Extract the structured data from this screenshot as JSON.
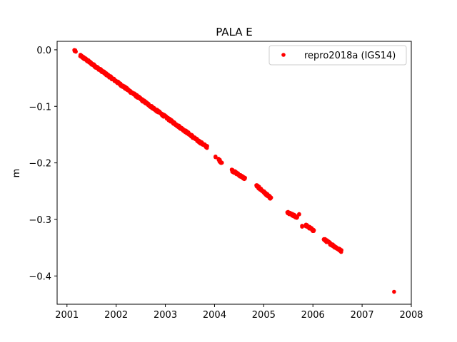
{
  "chart_data": {
    "type": "scatter",
    "title": "PALA E",
    "xlabel": "",
    "ylabel": "m",
    "xlim": [
      2000.8,
      2008.0
    ],
    "ylim": [
      -0.45,
      0.015
    ],
    "x_ticks": [
      2001,
      2002,
      2003,
      2004,
      2005,
      2006,
      2007,
      2008
    ],
    "x_tick_labels": [
      "2001",
      "2002",
      "2003",
      "2004",
      "2005",
      "2006",
      "2007",
      "2008"
    ],
    "y_ticks": [
      0.0,
      -0.1,
      -0.2,
      -0.3,
      -0.4
    ],
    "y_tick_labels": [
      "0.0",
      "−0.1",
      "−0.2",
      "−0.3",
      "−0.4"
    ],
    "legend": {
      "position": "top-right",
      "entries": [
        "repro2018a (IGS14)"
      ]
    },
    "grid": false,
    "colors": {
      "series": "#ff0000",
      "axes": "#000000"
    },
    "series": [
      {
        "name": "repro2018a (IGS14)",
        "marker": "dot",
        "segments": [
          {
            "x_start": 2001.15,
            "y_start": -0.001,
            "x_end": 2001.18,
            "y_end": -0.004
          },
          {
            "x_start": 2001.27,
            "y_start": -0.01,
            "x_end": 2003.55,
            "y_end": -0.153
          },
          {
            "x_start": 2003.55,
            "y_start": -0.154,
            "x_end": 2003.85,
            "y_end": -0.172
          },
          {
            "x_start": 2004.02,
            "y_start": -0.19,
            "x_end": 2004.02,
            "y_end": -0.19
          },
          {
            "x_start": 2004.08,
            "y_start": -0.194,
            "x_end": 2004.15,
            "y_end": -0.2
          },
          {
            "x_start": 2004.35,
            "y_start": -0.213,
            "x_end": 2004.62,
            "y_end": -0.228
          },
          {
            "x_start": 2004.85,
            "y_start": -0.24,
            "x_end": 2005.15,
            "y_end": -0.263
          },
          {
            "x_start": 2005.48,
            "y_start": -0.288,
            "x_end": 2005.68,
            "y_end": -0.296
          },
          {
            "x_start": 2005.72,
            "y_start": -0.29,
            "x_end": 2005.72,
            "y_end": -0.29
          },
          {
            "x_start": 2005.78,
            "y_start": -0.313,
            "x_end": 2005.78,
            "y_end": -0.313
          },
          {
            "x_start": 2005.85,
            "y_start": -0.31,
            "x_end": 2006.02,
            "y_end": -0.32
          },
          {
            "x_start": 2006.22,
            "y_start": -0.335,
            "x_end": 2006.58,
            "y_end": -0.356
          }
        ],
        "outliers": [
          {
            "x": 2007.65,
            "y": -0.428
          }
        ]
      }
    ]
  }
}
